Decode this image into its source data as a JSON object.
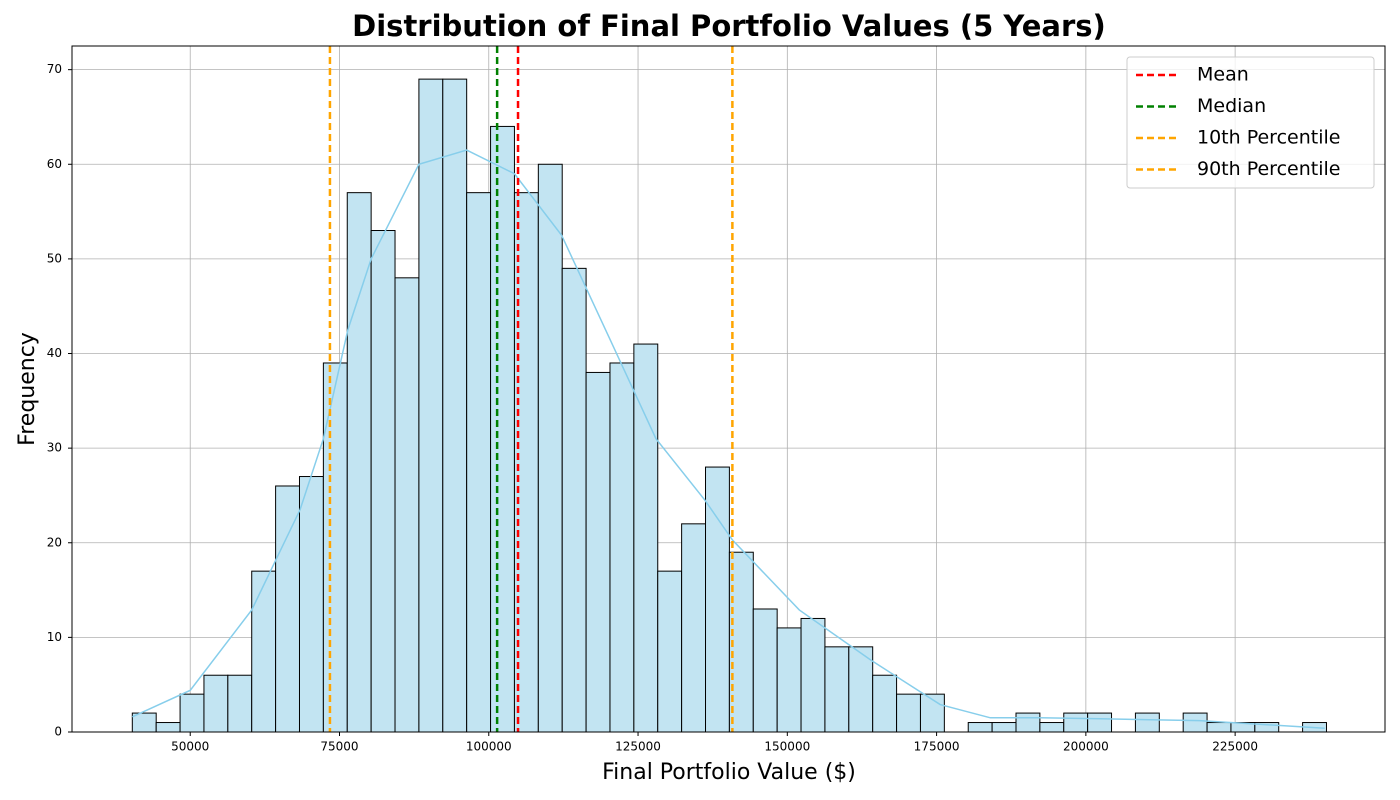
{
  "chart_data": {
    "type": "histogram",
    "title": "Distribution of Final Portfolio Values (5 Years)",
    "x_label": "Final Portfolio Value ($)",
    "y_label": "Frequency",
    "bins": [
      40300,
      44300,
      48300,
      52300,
      56300,
      60300,
      64300,
      68300,
      72300,
      76300,
      80300,
      84300,
      88300,
      92300,
      96300,
      100300,
      104300,
      108300,
      112300,
      116300,
      120300,
      124300,
      128300,
      132300,
      136300,
      140300,
      144300,
      148300,
      152300,
      156300,
      160300,
      164300,
      168300,
      172300,
      176300,
      180300,
      184300,
      188300,
      192300,
      196300,
      200300,
      204300,
      208300,
      212300,
      216300,
      220300,
      224300,
      228300,
      232300,
      236300,
      240300
    ],
    "values": [
      2,
      1,
      4,
      6,
      6,
      17,
      26,
      27,
      39,
      57,
      53,
      48,
      69,
      69,
      57,
      64,
      57,
      60,
      49,
      38,
      39,
      41,
      17,
      22,
      28,
      19,
      13,
      11,
      12,
      9,
      9,
      6,
      4,
      4,
      0,
      1,
      1,
      2,
      1,
      2,
      2,
      0,
      2,
      0,
      2,
      1,
      1,
      1,
      0,
      1
    ],
    "color": "#c2e4f2",
    "edgecolor": "#000000",
    "kde": {
      "color": "#87ceeb",
      "x": [
        40300,
        50000,
        60300,
        68400,
        72300,
        76400,
        80300,
        88300,
        96300,
        104300,
        112200,
        120300,
        128000,
        136200,
        140800,
        152000,
        164000,
        175600,
        184000,
        192300,
        202400,
        219000,
        240000
      ],
      "values": [
        1.6,
        4.4,
        12.9,
        23.5,
        31,
        42.5,
        50,
        60,
        61.5,
        59,
        52.5,
        41.5,
        31,
        24.5,
        20.3,
        12.9,
        7.6,
        2.9,
        1.5,
        1.5,
        1.4,
        1.2,
        0.4
      ]
    },
    "reference_lines": [
      {
        "name": "Mean",
        "value": 104900,
        "color": "red"
      },
      {
        "name": "Median",
        "value": 101400,
        "color": "green"
      },
      {
        "name": "10th Percentile",
        "value": 73400,
        "color": "orange"
      },
      {
        "name": "90th Percentile",
        "value": 140800,
        "color": "orange"
      }
    ],
    "xlim": [
      30200,
      250100
    ],
    "ylim": [
      0,
      72.5
    ],
    "xticks": [
      50000,
      75000,
      100000,
      125000,
      150000,
      175000,
      200000,
      225000
    ],
    "yticks": [
      0,
      10,
      20,
      30,
      40,
      50,
      60,
      70
    ],
    "grid": true,
    "legend": "upper-right"
  }
}
